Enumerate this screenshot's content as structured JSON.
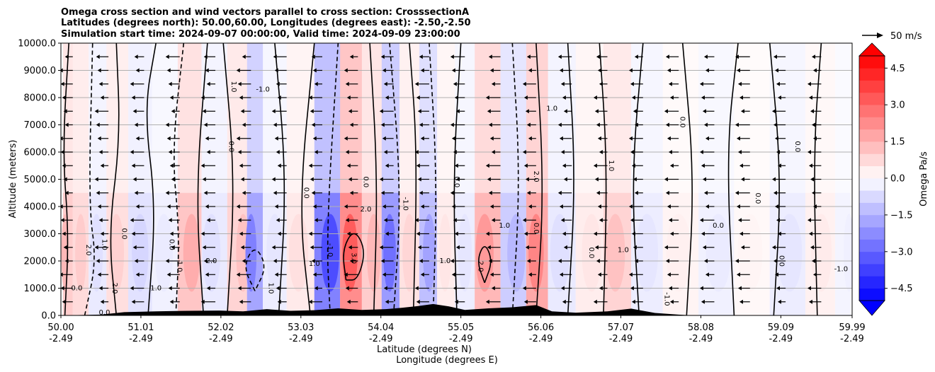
{
  "chart_data": {
    "type": "heatmap",
    "title_lines": [
      "Omega cross section and wind vectors parallel to cross section: CrosssectionA",
      "Latitudes (degrees north): 50.00,60.00, Longitudes (degrees east): -2.50,-2.50",
      "Simulation start time: 2024-09-07 00:00:00, Valid time: 2024-09-09 23:00:00"
    ],
    "ylabel": "Altitude (meters)",
    "xlabel_lat": "Latitude (degrees N)",
    "xlabel_lon": "Longitude (degrees E)",
    "ylim": [
      0,
      10000
    ],
    "yticks": [
      "0.0",
      "1000.0",
      "2000.0",
      "3000.0",
      "4000.0",
      "5000.0",
      "6000.0",
      "7000.0",
      "8000.0",
      "9000.0",
      "10000.0"
    ],
    "xticks_lat": [
      "50.00",
      "51.01",
      "52.02",
      "53.03",
      "54.04",
      "55.05",
      "56.06",
      "57.07",
      "58.08",
      "59.09",
      "59.99"
    ],
    "xticks_lon": [
      "-2.49",
      "-2.49",
      "-2.49",
      "-2.49",
      "-2.49",
      "-2.49",
      "-2.49",
      "-2.49",
      "-2.49",
      "-2.49",
      "-2.49"
    ],
    "colorbar": {
      "label": "Omega Pa/s",
      "range": [
        -5.0,
        5.0
      ],
      "ticks": [
        "4.5",
        "3.0",
        "1.5",
        "0.0",
        "−1.5",
        "−3.0",
        "−4.5"
      ],
      "tick_values": [
        4.5,
        3.0,
        1.5,
        0.0,
        -1.5,
        -3.0,
        -4.5
      ],
      "colors": [
        "#0000ff",
        "#ff0000",
        "#ffffff"
      ]
    },
    "quiver_key": {
      "label": "50 m/s",
      "value": 50
    },
    "grid": "horizontal",
    "omega_columns": [
      {
        "lat": 50.05,
        "v": 1.4
      },
      {
        "lat": 50.25,
        "v": 1.0
      },
      {
        "lat": 50.45,
        "v": -0.6
      },
      {
        "lat": 50.7,
        "v": 0.9
      },
      {
        "lat": 51.0,
        "v": -0.8
      },
      {
        "lat": 51.3,
        "v": -0.4
      },
      {
        "lat": 51.65,
        "v": 1.6
      },
      {
        "lat": 51.9,
        "v": -0.6
      },
      {
        "lat": 52.3,
        "v": 1.2
      },
      {
        "lat": 52.4,
        "v": -2.5
      },
      {
        "lat": 52.7,
        "v": -0.5
      },
      {
        "lat": 53.0,
        "v": 0.6
      },
      {
        "lat": 53.4,
        "v": -3.5
      },
      {
        "lat": 53.65,
        "v": 3.2
      },
      {
        "lat": 53.95,
        "v": 1.4
      },
      {
        "lat": 54.15,
        "v": -2.8
      },
      {
        "lat": 54.4,
        "v": 0.8
      },
      {
        "lat": 54.65,
        "v": -1.8
      },
      {
        "lat": 54.85,
        "v": 0.5
      },
      {
        "lat": 55.1,
        "v": -0.5
      },
      {
        "lat": 55.35,
        "v": 2.0
      },
      {
        "lat": 55.75,
        "v": -1.4
      },
      {
        "lat": 56.0,
        "v": 2.4
      },
      {
        "lat": 56.3,
        "v": -0.6
      },
      {
        "lat": 56.7,
        "v": 0.5
      },
      {
        "lat": 57.0,
        "v": 1.2
      },
      {
        "lat": 57.4,
        "v": -0.5
      },
      {
        "lat": 57.8,
        "v": 0.3
      },
      {
        "lat": 58.3,
        "v": -0.4
      },
      {
        "lat": 58.7,
        "v": 0.2
      },
      {
        "lat": 59.2,
        "v": -0.5
      },
      {
        "lat": 59.6,
        "v": 0.4
      },
      {
        "lat": 59.95,
        "v": -0.3
      }
    ],
    "contour_labels": [
      {
        "text": "0.0",
        "lat": 50.2,
        "alt": 1000
      },
      {
        "text": "2.0",
        "lat": 50.35,
        "alt": 2400
      },
      {
        "text": "1.0",
        "lat": 50.55,
        "alt": 2600
      },
      {
        "text": "0.0",
        "lat": 50.55,
        "alt": 100
      },
      {
        "text": "2.0",
        "lat": 50.68,
        "alt": 1000
      },
      {
        "text": "0.0",
        "lat": 50.8,
        "alt": 3000
      },
      {
        "text": "1.0",
        "lat": 51.2,
        "alt": 1000
      },
      {
        "text": "0.0",
        "lat": 51.4,
        "alt": 2600
      },
      {
        "text": "1.0",
        "lat": 51.5,
        "alt": 1800
      },
      {
        "text": "2.0",
        "lat": 51.9,
        "alt": 2000
      },
      {
        "text": "0.0",
        "lat": 52.15,
        "alt": 6200
      },
      {
        "text": "1.0",
        "lat": 52.18,
        "alt": 8400
      },
      {
        "text": "-1.0",
        "lat": 52.55,
        "alt": 8300
      },
      {
        "text": "1.0",
        "lat": 52.65,
        "alt": 1000
      },
      {
        "text": "0.0",
        "lat": 53.1,
        "alt": 4500
      },
      {
        "text": "1.0",
        "lat": 53.2,
        "alt": 1900
      },
      {
        "text": "-1.0",
        "lat": 53.4,
        "alt": 2400
      },
      {
        "text": "3.0",
        "lat": 53.7,
        "alt": 2100
      },
      {
        "text": "2.0",
        "lat": 53.85,
        "alt": 3900
      },
      {
        "text": "0.0",
        "lat": 53.85,
        "alt": 4900
      },
      {
        "text": "-1.0",
        "lat": 54.35,
        "alt": 4100
      },
      {
        "text": "1.0",
        "lat": 54.85,
        "alt": 2000
      },
      {
        "text": "0.0",
        "lat": 55.0,
        "alt": 4900
      },
      {
        "text": "2.0",
        "lat": 55.3,
        "alt": 1800
      },
      {
        "text": "1.0",
        "lat": 55.6,
        "alt": 3300
      },
      {
        "text": "0.0",
        "lat": 56.0,
        "alt": 3200
      },
      {
        "text": "2.0",
        "lat": 56.0,
        "alt": 5100
      },
      {
        "text": "1.0",
        "lat": 56.2,
        "alt": 7600
      },
      {
        "text": "0.0",
        "lat": 56.7,
        "alt": 2300
      },
      {
        "text": "1.0",
        "lat": 56.95,
        "alt": 5500
      },
      {
        "text": "1.0",
        "lat": 57.1,
        "alt": 2400
      },
      {
        "text": "0.0",
        "lat": 57.85,
        "alt": 7100
      },
      {
        "text": "-1.0",
        "lat": 57.65,
        "alt": 600
      },
      {
        "text": "0.0",
        "lat": 58.3,
        "alt": 3300
      },
      {
        "text": "0.0",
        "lat": 58.8,
        "alt": 4300
      },
      {
        "text": "0.0",
        "lat": 59.1,
        "alt": 2000
      },
      {
        "text": "-1.0",
        "lat": 59.85,
        "alt": 1700
      },
      {
        "text": "0.0",
        "lat": 59.3,
        "alt": 6200
      }
    ],
    "contour_lines": [
      {
        "style": "solid",
        "pts": [
          [
            50.05,
            0
          ],
          [
            50.1,
            3000
          ],
          [
            50.02,
            6000
          ],
          [
            50.1,
            10000
          ]
        ]
      },
      {
        "style": "dashed",
        "pts": [
          [
            50.3,
            0
          ],
          [
            50.45,
            2000
          ],
          [
            50.35,
            4000
          ],
          [
            50.4,
            10000
          ]
        ]
      },
      {
        "style": "solid",
        "pts": [
          [
            50.7,
            0
          ],
          [
            50.6,
            3000
          ],
          [
            50.75,
            6500
          ],
          [
            50.7,
            10000
          ]
        ]
      },
      {
        "style": "solid",
        "pts": [
          [
            51.1,
            0
          ],
          [
            51.2,
            4000
          ],
          [
            51.05,
            7500
          ],
          [
            51.2,
            10000
          ]
        ]
      },
      {
        "style": "dashed",
        "pts": [
          [
            51.45,
            0
          ],
          [
            51.5,
            3000
          ],
          [
            51.4,
            6000
          ],
          [
            51.55,
            10000
          ]
        ]
      },
      {
        "style": "solid",
        "pts": [
          [
            51.8,
            0
          ],
          [
            51.7,
            4500
          ],
          [
            51.85,
            10000
          ]
        ]
      },
      {
        "style": "solid",
        "pts": [
          [
            52.1,
            0
          ],
          [
            52.2,
            5000
          ],
          [
            52.05,
            10000
          ]
        ]
      },
      {
        "style": "dashed",
        "pts": [
          [
            52.45,
            900
          ],
          [
            52.3,
            1800
          ],
          [
            52.45,
            2600
          ],
          [
            52.6,
            1800
          ],
          [
            52.45,
            900
          ]
        ]
      },
      {
        "style": "solid",
        "pts": [
          [
            52.75,
            0
          ],
          [
            52.85,
            5000
          ],
          [
            52.7,
            10000
          ]
        ]
      },
      {
        "style": "solid",
        "pts": [
          [
            53.15,
            0
          ],
          [
            53.0,
            4000
          ],
          [
            53.2,
            10000
          ]
        ]
      },
      {
        "style": "dashed",
        "pts": [
          [
            53.4,
            0
          ],
          [
            53.35,
            3000
          ],
          [
            53.5,
            10000
          ]
        ]
      },
      {
        "style": "solid",
        "pts": [
          [
            53.6,
            1300
          ],
          [
            53.55,
            2400
          ],
          [
            53.7,
            3200
          ],
          [
            53.85,
            2400
          ],
          [
            53.75,
            1300
          ],
          [
            53.6,
            1300
          ]
        ]
      },
      {
        "style": "solid",
        "pts": [
          [
            53.95,
            0
          ],
          [
            54.0,
            5000
          ],
          [
            53.9,
            10000
          ]
        ]
      },
      {
        "style": "dashed",
        "pts": [
          [
            54.2,
            0
          ],
          [
            54.3,
            4500
          ],
          [
            54.15,
            10000
          ]
        ]
      },
      {
        "style": "solid",
        "pts": [
          [
            54.45,
            0
          ],
          [
            54.5,
            6000
          ],
          [
            54.4,
            10000
          ]
        ]
      },
      {
        "style": "dashed",
        "pts": [
          [
            54.7,
            0
          ],
          [
            54.75,
            5000
          ],
          [
            54.65,
            10000
          ]
        ]
      },
      {
        "style": "solid",
        "pts": [
          [
            55.0,
            0
          ],
          [
            54.95,
            5000
          ],
          [
            55.05,
            10000
          ]
        ]
      },
      {
        "style": "solid",
        "pts": [
          [
            55.35,
            1200
          ],
          [
            55.25,
            2000
          ],
          [
            55.35,
            2700
          ],
          [
            55.45,
            2000
          ],
          [
            55.35,
            1200
          ]
        ]
      },
      {
        "style": "dashed",
        "pts": [
          [
            55.7,
            0
          ],
          [
            55.8,
            5000
          ],
          [
            55.7,
            10000
          ]
        ]
      },
      {
        "style": "solid",
        "pts": [
          [
            56.0,
            0
          ],
          [
            56.1,
            4500
          ],
          [
            56.0,
            10000
          ]
        ]
      },
      {
        "style": "solid",
        "pts": [
          [
            56.4,
            0
          ],
          [
            56.5,
            5000
          ],
          [
            56.4,
            10000
          ]
        ]
      },
      {
        "style": "solid",
        "pts": [
          [
            56.85,
            0
          ],
          [
            56.9,
            5500
          ],
          [
            56.8,
            10000
          ]
        ]
      },
      {
        "style": "solid",
        "pts": [
          [
            57.3,
            0
          ],
          [
            57.2,
            5000
          ],
          [
            57.35,
            10000
          ]
        ]
      },
      {
        "style": "solid",
        "pts": [
          [
            57.9,
            0
          ],
          [
            58.0,
            5000
          ],
          [
            57.85,
            10000
          ]
        ]
      },
      {
        "style": "solid",
        "pts": [
          [
            58.5,
            0
          ],
          [
            58.4,
            6000
          ],
          [
            58.55,
            10000
          ]
        ]
      },
      {
        "style": "solid",
        "pts": [
          [
            59.0,
            0
          ],
          [
            59.1,
            5000
          ],
          [
            58.95,
            10000
          ]
        ]
      },
      {
        "style": "solid",
        "pts": [
          [
            59.55,
            0
          ],
          [
            59.5,
            6000
          ],
          [
            59.6,
            10000
          ]
        ]
      }
    ],
    "wind_vectors_description": "vectors parallel to section, predominantly pointing towards lower latitude"
  }
}
